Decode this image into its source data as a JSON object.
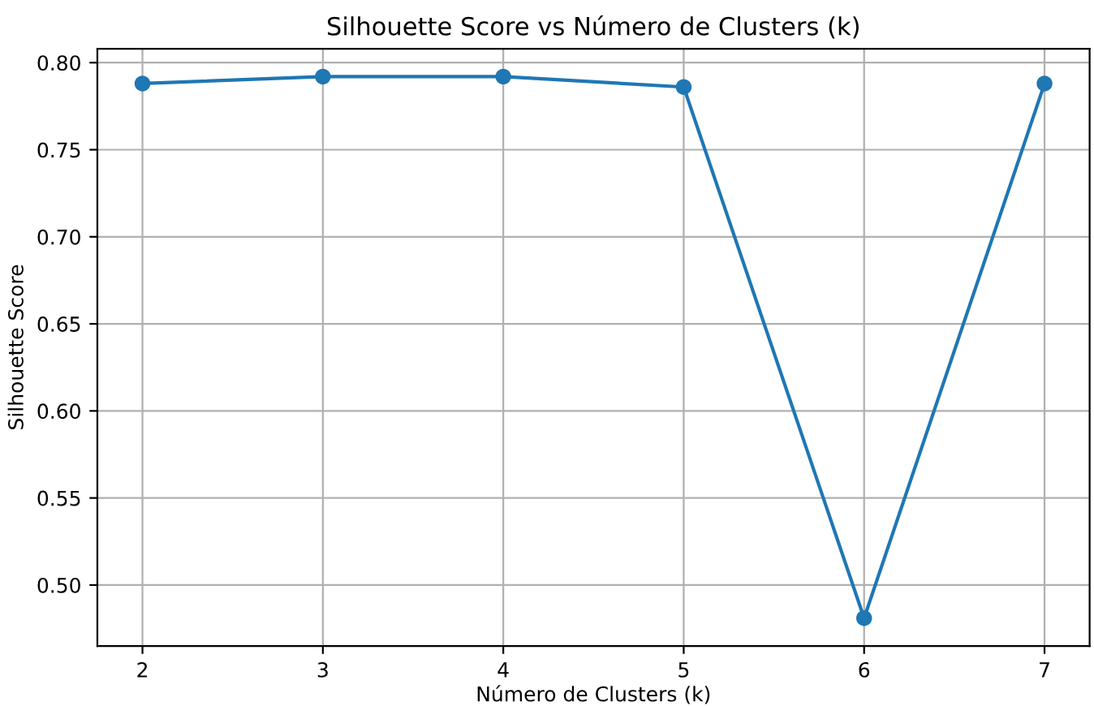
{
  "chart_data": {
    "type": "line",
    "title": "Silhouette Score vs Número de Clusters (k)",
    "xlabel": "Número de Clusters (k)",
    "ylabel": "Silhouette Score",
    "x": [
      2,
      3,
      4,
      5,
      6,
      7
    ],
    "series": [
      {
        "color": "#1f77b4",
        "values": [
          0.788,
          0.792,
          0.792,
          0.786,
          0.481,
          0.788
        ]
      }
    ],
    "xlim": [
      1.75,
      7.25
    ],
    "xticks": [
      2,
      3,
      4,
      5,
      6,
      7
    ],
    "ylim": [
      0.465,
      0.808
    ],
    "yticks": [
      {
        "value": 0.5,
        "label": "0.50"
      },
      {
        "value": 0.55,
        "label": "0.55"
      },
      {
        "value": 0.6,
        "label": "0.60"
      },
      {
        "value": 0.65,
        "label": "0.65"
      },
      {
        "value": 0.7,
        "label": "0.70"
      },
      {
        "value": 0.75,
        "label": "0.75"
      },
      {
        "value": 0.8,
        "label": "0.80"
      }
    ],
    "grid": true,
    "marker": "circle",
    "line_style": "solid"
  }
}
